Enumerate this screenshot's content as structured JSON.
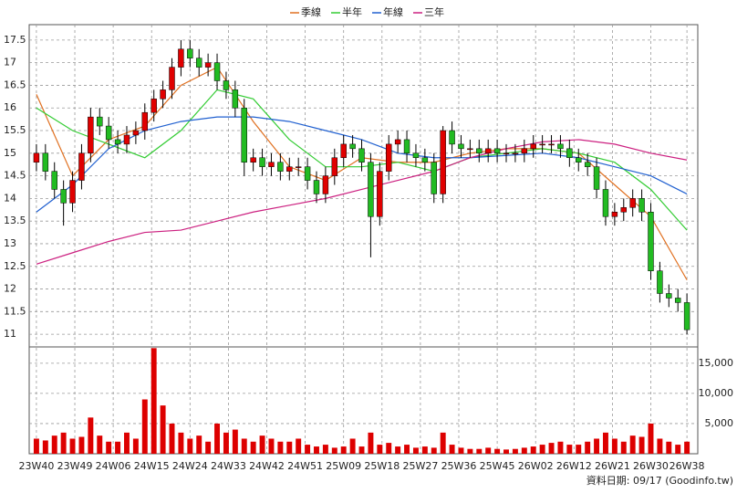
{
  "chart_data": {
    "type": "candlestick",
    "legend": "top",
    "grid": true,
    "footnote": "資料日期: 09/17 (Goodinfo.tw)",
    "up_color": "#e00000",
    "down_color": "#22bb22",
    "candles": {
      "open": [
        14.8,
        15.0,
        14.6,
        14.2,
        13.9,
        14.4,
        15.0,
        15.8,
        15.6,
        15.3,
        15.2,
        15.4,
        15.5,
        15.9,
        16.2,
        16.4,
        16.9,
        17.3,
        17.1,
        16.9,
        17.0,
        16.6,
        16.4,
        16.0,
        14.8,
        14.9,
        14.7,
        14.8,
        14.6,
        14.7,
        14.7,
        14.4,
        14.1,
        14.5,
        14.9,
        15.2,
        15.1,
        14.8,
        13.6,
        14.6,
        15.2,
        15.3,
        15.0,
        14.9,
        14.8,
        14.1,
        15.5,
        15.2,
        15.1,
        15.1,
        15.0,
        15.1,
        15.0,
        15.0,
        15.0,
        15.1,
        15.2,
        15.2,
        15.2,
        15.1,
        14.9,
        14.8,
        14.7,
        14.2,
        13.6,
        13.7,
        13.8,
        14.0,
        13.7,
        12.4,
        11.9,
        11.8,
        11.7
      ],
      "high": [
        15.2,
        15.2,
        14.8,
        14.4,
        14.6,
        15.2,
        16.0,
        16.0,
        15.8,
        15.5,
        15.6,
        15.7,
        16.1,
        16.4,
        16.6,
        17.1,
        17.5,
        17.5,
        17.3,
        17.2,
        17.2,
        16.8,
        16.6,
        16.2,
        15.1,
        15.1,
        15.0,
        15.0,
        14.9,
        14.9,
        14.9,
        14.6,
        14.7,
        15.1,
        15.4,
        15.4,
        15.3,
        15.0,
        14.8,
        15.4,
        15.5,
        15.5,
        15.2,
        15.1,
        15.0,
        15.6,
        15.7,
        15.4,
        15.3,
        15.3,
        15.3,
        15.3,
        15.2,
        15.2,
        15.3,
        15.4,
        15.4,
        15.4,
        15.4,
        15.3,
        15.1,
        15.0,
        14.9,
        14.4,
        13.9,
        14.0,
        14.2,
        14.2,
        13.9,
        12.6,
        12.1,
        12.0,
        11.9
      ],
      "low": [
        14.6,
        14.4,
        14.0,
        13.4,
        13.7,
        14.2,
        14.8,
        15.4,
        15.1,
        15.0,
        15.0,
        15.2,
        15.3,
        15.7,
        16.0,
        16.2,
        16.7,
        16.9,
        16.7,
        16.7,
        16.4,
        16.2,
        15.8,
        14.5,
        14.6,
        14.5,
        14.5,
        14.4,
        14.4,
        14.5,
        14.2,
        13.9,
        13.9,
        14.3,
        14.7,
        14.9,
        14.6,
        12.7,
        13.4,
        14.4,
        15.0,
        14.8,
        14.7,
        14.6,
        13.9,
        13.9,
        15.0,
        14.9,
        14.9,
        14.8,
        14.8,
        14.8,
        14.8,
        14.8,
        14.8,
        14.9,
        15.0,
        15.0,
        14.9,
        14.7,
        14.6,
        14.5,
        14.0,
        13.4,
        13.4,
        13.5,
        13.6,
        13.5,
        12.2,
        11.7,
        11.6,
        11.5,
        11.0
      ],
      "close": [
        15.0,
        14.6,
        14.2,
        13.9,
        14.4,
        15.0,
        15.8,
        15.6,
        15.3,
        15.2,
        15.4,
        15.5,
        15.9,
        16.2,
        16.4,
        16.9,
        17.3,
        17.1,
        16.9,
        17.0,
        16.6,
        16.4,
        16.0,
        14.8,
        14.9,
        14.7,
        14.8,
        14.6,
        14.7,
        14.7,
        14.4,
        14.1,
        14.5,
        14.9,
        15.2,
        15.1,
        14.8,
        13.6,
        14.6,
        15.2,
        15.3,
        15.0,
        14.9,
        14.8,
        14.1,
        15.5,
        15.2,
        15.1,
        15.1,
        15.0,
        15.1,
        15.0,
        15.0,
        15.0,
        15.1,
        15.2,
        15.2,
        15.2,
        15.1,
        14.9,
        14.8,
        14.7,
        14.2,
        13.6,
        13.7,
        13.8,
        14.0,
        13.7,
        12.4,
        11.9,
        11.8,
        11.7,
        11.1
      ]
    },
    "volume": {
      "color": "#dd0000",
      "values": [
        2500,
        2200,
        3000,
        3500,
        2500,
        2800,
        6000,
        3000,
        2000,
        2000,
        3500,
        2500,
        9000,
        17500,
        8000,
        5000,
        3500,
        2500,
        3000,
        2000,
        5000,
        3500,
        4000,
        2500,
        2000,
        3000,
        2500,
        2000,
        2000,
        2500,
        1500,
        1200,
        1500,
        1000,
        1200,
        2500,
        1200,
        3500,
        1500,
        1800,
        1200,
        1500,
        1000,
        1200,
        1000,
        3500,
        1500,
        1000,
        800,
        800,
        1000,
        800,
        700,
        800,
        1000,
        1200,
        1500,
        1800,
        2000,
        1500,
        1500,
        2000,
        2500,
        3500,
        2500,
        2000,
        3000,
        2800,
        5000,
        2500,
        2000,
        1500,
        2000
      ]
    },
    "series": [
      {
        "name": "季線",
        "color": "#e07020",
        "x": [
          0,
          4,
          8,
          12,
          16,
          20,
          24,
          28,
          32,
          36,
          40,
          44,
          48,
          52,
          56,
          60,
          64,
          68,
          72
        ],
        "values": [
          16.3,
          14.5,
          15.3,
          15.6,
          16.5,
          16.9,
          15.7,
          14.7,
          14.4,
          14.9,
          14.8,
          14.8,
          15.0,
          15.1,
          15.1,
          15.0,
          14.3,
          13.6,
          12.2
        ]
      },
      {
        "name": "半年",
        "color": "#33cc33",
        "x": [
          0,
          4,
          8,
          12,
          16,
          20,
          24,
          28,
          32,
          36,
          40,
          44,
          48,
          52,
          56,
          60,
          64,
          68,
          72
        ],
        "values": [
          16.0,
          15.5,
          15.2,
          14.9,
          15.5,
          16.4,
          16.2,
          15.3,
          14.7,
          14.7,
          14.8,
          14.6,
          14.9,
          15.0,
          15.1,
          15.0,
          14.8,
          14.2,
          13.3
        ]
      },
      {
        "name": "年線",
        "color": "#2060d0",
        "x": [
          0,
          4,
          8,
          12,
          16,
          20,
          24,
          28,
          32,
          36,
          40,
          44,
          48,
          52,
          56,
          60,
          64,
          68,
          72
        ],
        "values": [
          13.7,
          14.3,
          15.1,
          15.5,
          15.7,
          15.8,
          15.8,
          15.7,
          15.5,
          15.3,
          15.0,
          14.9,
          14.9,
          14.95,
          15.0,
          14.9,
          14.7,
          14.5,
          14.1
        ]
      },
      {
        "name": "三年",
        "color": "#cc2080",
        "x": [
          0,
          4,
          8,
          12,
          16,
          20,
          24,
          28,
          32,
          36,
          40,
          44,
          48,
          52,
          56,
          60,
          64,
          68,
          72
        ],
        "values": [
          12.55,
          12.8,
          13.05,
          13.25,
          13.3,
          13.5,
          13.7,
          13.85,
          14.0,
          14.2,
          14.4,
          14.6,
          14.9,
          15.1,
          15.25,
          15.3,
          15.2,
          15.0,
          14.85
        ]
      }
    ],
    "xlim": [
      -0.8,
      73.2
    ],
    "xticks": [
      {
        "value": 0,
        "label": "23W40"
      },
      {
        "value": 4.25,
        "label": "23W49"
      },
      {
        "value": 8.5,
        "label": "24W06"
      },
      {
        "value": 12.75,
        "label": "24W15"
      },
      {
        "value": 17,
        "label": "24W24"
      },
      {
        "value": 21.25,
        "label": "24W33"
      },
      {
        "value": 25.5,
        "label": "24W42"
      },
      {
        "value": 29.75,
        "label": "24W51"
      },
      {
        "value": 34,
        "label": "25W09"
      },
      {
        "value": 38.25,
        "label": "25W18"
      },
      {
        "value": 42.5,
        "label": "25W27"
      },
      {
        "value": 46.75,
        "label": "25W36"
      },
      {
        "value": 51,
        "label": "25W45"
      },
      {
        "value": 55.25,
        "label": "26W02"
      },
      {
        "value": 59.5,
        "label": "26W12"
      },
      {
        "value": 63.75,
        "label": "26W21"
      },
      {
        "value": 68,
        "label": "26W30"
      },
      {
        "value": 72,
        "label": "26W38"
      }
    ],
    "ylim": [
      10.72,
      17.84
    ],
    "yticks": [
      11,
      11.5,
      12,
      12.5,
      13,
      13.5,
      14,
      14.5,
      15,
      15.5,
      16,
      16.5,
      17,
      17.5
    ],
    "y2lim": [
      0,
      17700
    ],
    "y2ticks": [
      {
        "value": 5000,
        "label": "5,000"
      },
      {
        "value": 10000,
        "label": "10,000"
      },
      {
        "value": 15000,
        "label": "15,000"
      }
    ]
  }
}
